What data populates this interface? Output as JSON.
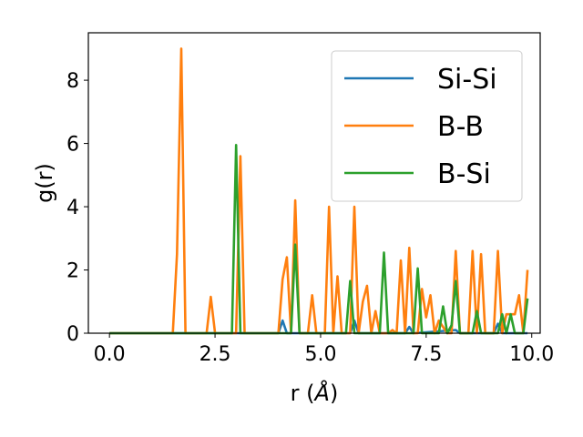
{
  "chart_data": {
    "type": "line",
    "xlabel": "r (",
    "xlabel_unit": "Å",
    "xlabel_close": ")",
    "ylabel": "g(r)",
    "xlim": [
      -0.5,
      10.2
    ],
    "ylim": [
      0,
      9.5
    ],
    "xticks": [
      0.0,
      2.5,
      5.0,
      7.5,
      10.0
    ],
    "xtick_labels": [
      "0.0",
      "2.5",
      "5.0",
      "7.5",
      "10.0"
    ],
    "yticks": [
      0,
      2,
      4,
      6,
      8
    ],
    "ytick_labels": [
      "0",
      "2",
      "4",
      "6",
      "8"
    ],
    "grid": false,
    "legend": "top-right",
    "series": [
      {
        "name": "Si-Si",
        "color": "#1f77b4",
        "x": [
          0.0,
          4.0,
          4.1,
          4.2,
          5.7,
          5.8,
          5.9,
          7.0,
          7.1,
          7.2,
          8.2,
          8.3,
          9.1,
          9.2,
          9.3,
          9.9
        ],
        "y": [
          0,
          0,
          0.4,
          0,
          0,
          0.4,
          0,
          0,
          0.2,
          0,
          0.1,
          0,
          0,
          0.3,
          0,
          0
        ]
      },
      {
        "name": "B-B",
        "color": "#ff7f0e",
        "x": [
          0.0,
          1.5,
          1.6,
          1.7,
          1.8,
          2.3,
          2.4,
          2.5,
          3.0,
          3.1,
          3.2,
          4.0,
          4.1,
          4.2,
          4.3,
          4.4,
          4.5,
          4.7,
          4.8,
          4.9,
          5.1,
          5.2,
          5.3,
          5.4,
          5.5,
          5.6,
          5.7,
          5.8,
          5.9,
          6.0,
          6.1,
          6.2,
          6.3,
          6.4,
          6.6,
          6.7,
          6.8,
          6.9,
          7.0,
          7.1,
          7.2,
          7.3,
          7.4,
          7.5,
          7.6,
          7.7,
          7.8,
          8.0,
          8.1,
          8.2,
          8.3,
          8.5,
          8.6,
          8.7,
          8.8,
          8.9,
          9.1,
          9.2,
          9.3,
          9.4,
          9.5,
          9.6,
          9.7,
          9.8,
          9.9
        ],
        "y": [
          0,
          0,
          2.5,
          9.0,
          0,
          0,
          1.15,
          0,
          0,
          5.6,
          0,
          0,
          1.7,
          2.4,
          0,
          4.2,
          0,
          0,
          1.2,
          0,
          0,
          4.0,
          0,
          1.8,
          0,
          0,
          0,
          4.0,
          0,
          1.0,
          1.5,
          0,
          0.7,
          0,
          0,
          0.1,
          0,
          2.3,
          0,
          2.7,
          0,
          0,
          1.4,
          0.5,
          1.2,
          0,
          0.4,
          0,
          0,
          2.6,
          0,
          0,
          2.6,
          0,
          2.5,
          0,
          0,
          2.6,
          0,
          0.6,
          0.6,
          0.6,
          1.2,
          0,
          2.0
        ]
      },
      {
        "name": "B-Si",
        "color": "#2ca02c",
        "x": [
          0.0,
          2.9,
          3.0,
          3.1,
          4.3,
          4.4,
          4.5,
          5.6,
          5.7,
          5.8,
          6.4,
          6.5,
          6.6,
          7.2,
          7.3,
          7.4,
          7.8,
          7.9,
          8.0,
          8.1,
          8.2,
          8.3,
          8.6,
          8.7,
          8.8,
          8.9,
          9.2,
          9.3,
          9.4,
          9.5,
          9.6,
          9.7,
          9.8,
          9.9
        ],
        "y": [
          0,
          0,
          5.95,
          0,
          0,
          2.8,
          0,
          0,
          1.65,
          0,
          0,
          2.55,
          0,
          0,
          2.05,
          0,
          0,
          0.85,
          0,
          0.25,
          1.65,
          0,
          0,
          0.7,
          0,
          0,
          0,
          0.6,
          0,
          0.6,
          0,
          0,
          0,
          1.1
        ]
      }
    ]
  }
}
